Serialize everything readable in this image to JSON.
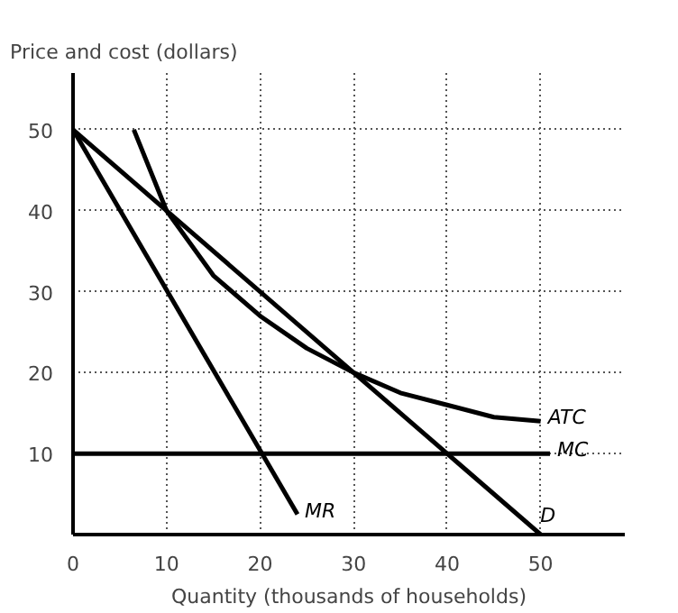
{
  "chart_data": {
    "type": "line",
    "ylabel": "Price and cost (dollars)",
    "xlabel": "Quantity (thousands of households)",
    "xlim": [
      0,
      59
    ],
    "ylim": [
      0,
      57
    ],
    "xticks": [
      0,
      10,
      20,
      30,
      40,
      50
    ],
    "yticks": [
      10,
      20,
      30,
      40,
      50
    ],
    "grid": true,
    "marker": "none",
    "line_style": "solid",
    "series": [
      {
        "name": "MR",
        "color": "#000000",
        "x": [
          0,
          24
        ],
        "values": [
          50,
          2.5
        ]
      },
      {
        "name": "D",
        "color": "#000000",
        "x": [
          0,
          50
        ],
        "values": [
          50,
          0
        ]
      },
      {
        "name": "ATC",
        "color": "#000000",
        "x": [
          6.5,
          10,
          15,
          20,
          25,
          30,
          35,
          40,
          45,
          50
        ],
        "values": [
          50,
          40,
          32,
          27,
          23,
          20,
          17.5,
          16,
          14.5,
          14
        ]
      },
      {
        "name": "MC",
        "color": "#000000",
        "x": [
          0,
          51
        ],
        "values": [
          10,
          10
        ]
      }
    ]
  }
}
